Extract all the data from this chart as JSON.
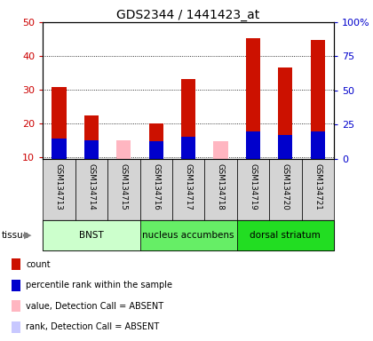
{
  "title": "GDS2344 / 1441423_at",
  "samples": [
    "GSM134713",
    "GSM134714",
    "GSM134715",
    "GSM134716",
    "GSM134717",
    "GSM134718",
    "GSM134719",
    "GSM134720",
    "GSM134721"
  ],
  "count_values": [
    30.7,
    22.3,
    null,
    20.0,
    33.2,
    null,
    45.3,
    36.5,
    44.7
  ],
  "rank_values": [
    15.0,
    13.5,
    null,
    12.5,
    16.0,
    null,
    20.0,
    17.5,
    20.0
  ],
  "absent_value_values": [
    null,
    null,
    14.8,
    null,
    null,
    14.6,
    null,
    null,
    null
  ],
  "absent_rank_values": [
    null,
    null,
    null,
    null,
    null,
    null,
    null,
    null,
    null
  ],
  "tissue_groups": [
    {
      "label": "BNST",
      "start": 0,
      "end": 3,
      "color": "#ccffcc"
    },
    {
      "label": "nucleus accumbens",
      "start": 3,
      "end": 6,
      "color": "#66ee66"
    },
    {
      "label": "dorsal striatum",
      "start": 6,
      "end": 9,
      "color": "#22dd22"
    }
  ],
  "ylim_left": [
    9.5,
    50
  ],
  "ylim_right": [
    0,
    100
  ],
  "yticks_left": [
    10,
    20,
    30,
    40,
    50
  ],
  "yticks_right": [
    0,
    25,
    50,
    75,
    100
  ],
  "yticklabels_right": [
    "0",
    "25",
    "50",
    "75",
    "100%"
  ],
  "bar_width": 0.45,
  "count_color": "#cc1100",
  "rank_color": "#0000cc",
  "absent_value_color": "#ffb6c1",
  "absent_rank_color": "#c8c8ff",
  "left_tick_color": "#cc0000",
  "right_tick_color": "#0000cc",
  "legend_items": [
    {
      "color": "#cc1100",
      "label": "count"
    },
    {
      "color": "#0000cc",
      "label": "percentile rank within the sample"
    },
    {
      "color": "#ffb6c1",
      "label": "value, Detection Call = ABSENT"
    },
    {
      "color": "#c8c8ff",
      "label": "rank, Detection Call = ABSENT"
    }
  ],
  "tissue_label": "tissue"
}
